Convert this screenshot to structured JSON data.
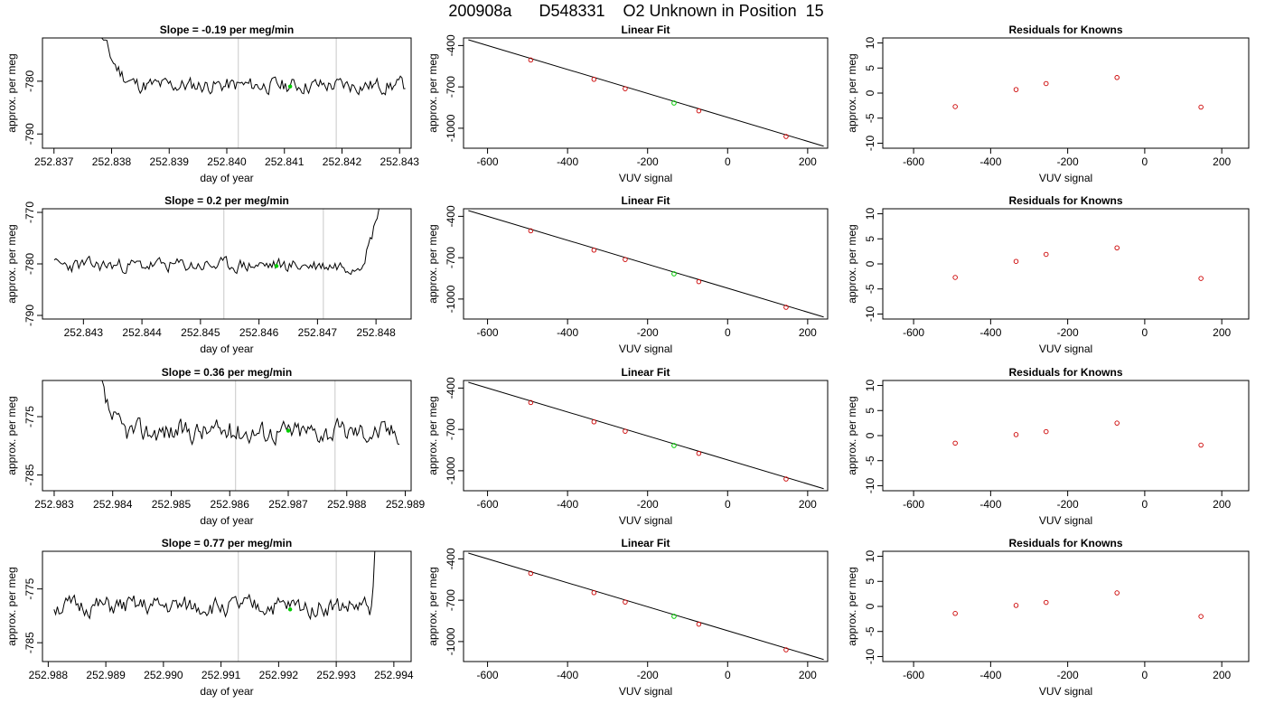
{
  "suptitle": "200908a      D548331    O2 Unknown in Position  15",
  "colors": {
    "trace": "#000000",
    "unknown": "#00cc00",
    "known": "#cc0000",
    "vline": "#c8c8c8",
    "fit": "#000000"
  },
  "chart_data": [
    {
      "type": "line",
      "title": "Slope =  -0.19  per meg/min",
      "xlabel": "day of year",
      "ylabel": "approx. per meg",
      "xlim": [
        252.8368,
        252.8432
      ],
      "ylim": [
        -792.7,
        -771.8
      ],
      "xticks": [
        "252.837",
        "252.838",
        "252.839",
        "252.840",
        "252.841",
        "252.842",
        "252.843"
      ],
      "xtick_values": [
        252.837,
        252.838,
        252.839,
        252.84,
        252.841,
        252.842,
        252.843
      ],
      "yticks": [
        "-790",
        "-780"
      ],
      "ytick_values": [
        -790,
        -780
      ],
      "vlines": [
        252.8402,
        252.8419
      ],
      "x_start": 252.8376,
      "x_end": 252.8431,
      "level": -780.8,
      "seed": 11,
      "amp": 1.1,
      "spike": "start",
      "spike_end": 252.8386,
      "spike_peak": -770,
      "unknown_point": [
        252.8411,
        -781.0
      ]
    },
    {
      "type": "line",
      "title": "Slope =  0.2  per meg/min",
      "xlabel": "day of year",
      "ylabel": "approx. per meg",
      "xlim": [
        252.8423,
        252.8486
      ],
      "ylim": [
        -790.7,
        -769.3
      ],
      "xticks": [
        "252.843",
        "252.844",
        "252.845",
        "252.846",
        "252.847",
        "252.848"
      ],
      "xtick_values": [
        252.843,
        252.844,
        252.845,
        252.846,
        252.847,
        252.848
      ],
      "yticks": [
        "-790",
        "-780",
        "-770"
      ],
      "ytick_values": [
        -790,
        -780,
        -770
      ],
      "vlines": [
        252.8454,
        252.8471
      ],
      "x_start": 252.8425,
      "x_end": 252.8482,
      "level": -780.3,
      "seed": 23,
      "amp": 1.0,
      "spike": "end",
      "spike_end": 252.848,
      "spike_peak": -768,
      "unknown_point": [
        252.8463,
        -780.4
      ]
    },
    {
      "type": "line",
      "title": "Slope =  0.36  per meg/min",
      "xlabel": "day of year",
      "ylabel": "approx. per meg",
      "xlim": [
        252.9828,
        252.9891
      ],
      "ylim": [
        -787.7,
        -768.8
      ],
      "xticks": [
        "252.983",
        "252.984",
        "252.985",
        "252.986",
        "252.987",
        "252.988",
        "252.989"
      ],
      "xtick_values": [
        252.983,
        252.984,
        252.985,
        252.986,
        252.987,
        252.988,
        252.989
      ],
      "yticks": [
        "-785",
        "-775"
      ],
      "ytick_values": [
        -785,
        -775
      ],
      "vlines": [
        252.9861,
        252.9878
      ],
      "x_start": 252.9836,
      "x_end": 252.9889,
      "level": -777.5,
      "seed": 37,
      "amp": 1.4,
      "spike": "start",
      "spike_end": 252.9843,
      "spike_peak": -767,
      "unknown_point": [
        252.987,
        -777.4
      ]
    },
    {
      "type": "line",
      "title": "Slope =  0.77  per meg/min",
      "xlabel": "day of year",
      "ylabel": "approx. per meg",
      "xlim": [
        252.9879,
        252.9943
      ],
      "ylim": [
        -788.5,
        -768.0
      ],
      "xticks": [
        "252.988",
        "252.989",
        "252.990",
        "252.991",
        "252.992",
        "252.993",
        "252.994"
      ],
      "xtick_values": [
        252.988,
        252.989,
        252.99,
        252.991,
        252.992,
        252.993,
        252.994
      ],
      "yticks": [
        "-785",
        "-775"
      ],
      "ytick_values": [
        -785,
        -775
      ],
      "vlines": [
        252.9913,
        252.993
      ],
      "x_start": 252.9881,
      "x_end": 252.9937,
      "level": -778.3,
      "seed": 51,
      "amp": 1.3,
      "spike": "end",
      "spike_end": 252.994,
      "spike_peak": -766,
      "unknown_point": [
        252.9922,
        -778.8
      ]
    },
    {
      "type": "scatter",
      "title": "Linear Fit",
      "xlabel": "VUV signal",
      "ylabel": "approx. per meg",
      "xlim": [
        -660,
        250
      ],
      "ylim": [
        -1145,
        -345
      ],
      "xticks": [
        "-600",
        "-400",
        "-200",
        "0",
        "200"
      ],
      "xtick_values": [
        -600,
        -400,
        -200,
        0,
        200
      ],
      "yticks": [
        "-1000",
        "-700",
        "-400"
      ],
      "ytick_values": [
        -1000,
        -700,
        -400
      ],
      "fit_line": [
        [
          -648,
          -358
        ],
        [
          240,
          -1130
        ]
      ],
      "knowns": [
        [
          -492,
          -505
        ],
        [
          -334,
          -645
        ],
        [
          -256,
          -713
        ],
        [
          -72,
          -874
        ],
        [
          146,
          -1060
        ]
      ],
      "unknown": [
        [
          -134,
          -817
        ]
      ]
    },
    {
      "type": "scatter",
      "title": "Linear Fit",
      "xlabel": "VUV signal",
      "ylabel": "approx. per meg",
      "xlim": [
        -660,
        250
      ],
      "ylim": [
        -1145,
        -345
      ],
      "xticks": [
        "-600",
        "-400",
        "-200",
        "0",
        "200"
      ],
      "xtick_values": [
        -600,
        -400,
        -200,
        0,
        200
      ],
      "yticks": [
        "-1000",
        "-700",
        "-400"
      ],
      "ytick_values": [
        -1000,
        -700,
        -400
      ],
      "fit_line": [
        [
          -648,
          -358
        ],
        [
          240,
          -1130
        ]
      ],
      "knowns": [
        [
          -492,
          -505
        ],
        [
          -334,
          -645
        ],
        [
          -256,
          -713
        ],
        [
          -72,
          -874
        ],
        [
          146,
          -1060
        ]
      ],
      "unknown": [
        [
          -134,
          -817
        ]
      ]
    },
    {
      "type": "scatter",
      "title": "Linear Fit",
      "xlabel": "VUV signal",
      "ylabel": "approx. per meg",
      "xlim": [
        -660,
        250
      ],
      "ylim": [
        -1145,
        -345
      ],
      "xticks": [
        "-600",
        "-400",
        "-200",
        "0",
        "200"
      ],
      "xtick_values": [
        -600,
        -400,
        -200,
        0,
        200
      ],
      "yticks": [
        "-1000",
        "-700",
        "-400"
      ],
      "ytick_values": [
        -1000,
        -700,
        -400
      ],
      "fit_line": [
        [
          -648,
          -358
        ],
        [
          240,
          -1130
        ]
      ],
      "knowns": [
        [
          -492,
          -505
        ],
        [
          -334,
          -645
        ],
        [
          -256,
          -713
        ],
        [
          -72,
          -874
        ],
        [
          146,
          -1060
        ]
      ],
      "unknown": [
        [
          -134,
          -817
        ]
      ]
    },
    {
      "type": "scatter",
      "title": "Linear Fit",
      "xlabel": "VUV signal",
      "ylabel": "approx. per meg",
      "xlim": [
        -660,
        250
      ],
      "ylim": [
        -1145,
        -345
      ],
      "xticks": [
        "-600",
        "-400",
        "-200",
        "0",
        "200"
      ],
      "xtick_values": [
        -600,
        -400,
        -200,
        0,
        200
      ],
      "yticks": [
        "-1000",
        "-700",
        "-400"
      ],
      "ytick_values": [
        -1000,
        -700,
        -400
      ],
      "fit_line": [
        [
          -648,
          -358
        ],
        [
          240,
          -1130
        ]
      ],
      "knowns": [
        [
          -492,
          -505
        ],
        [
          -334,
          -645
        ],
        [
          -256,
          -713
        ],
        [
          -72,
          -874
        ],
        [
          146,
          -1060
        ]
      ],
      "unknown": [
        [
          -134,
          -817
        ]
      ]
    },
    {
      "type": "scatter",
      "title": "Residuals for Knowns",
      "xlabel": "VUV signal",
      "ylabel": "approx. per meg",
      "xlim": [
        -680,
        270
      ],
      "ylim": [
        -11,
        11
      ],
      "xticks": [
        "-600",
        "-400",
        "-200",
        "0",
        "200"
      ],
      "xtick_values": [
        -600,
        -400,
        -200,
        0,
        200
      ],
      "yticks": [
        "-10",
        "-5",
        "0",
        "5",
        "10"
      ],
      "ytick_values": [
        -10,
        -5,
        0,
        5,
        10
      ],
      "knowns": [
        [
          -492,
          -2.7
        ],
        [
          -334,
          0.7
        ],
        [
          -256,
          1.9
        ],
        [
          -72,
          3.1
        ],
        [
          146,
          -2.8
        ]
      ]
    },
    {
      "type": "scatter",
      "title": "Residuals for Knowns",
      "xlabel": "VUV signal",
      "ylabel": "approx. per meg",
      "xlim": [
        -680,
        270
      ],
      "ylim": [
        -11,
        11
      ],
      "xticks": [
        "-600",
        "-400",
        "-200",
        "0",
        "200"
      ],
      "xtick_values": [
        -600,
        -400,
        -200,
        0,
        200
      ],
      "yticks": [
        "-10",
        "-5",
        "0",
        "5",
        "10"
      ],
      "ytick_values": [
        -10,
        -5,
        0,
        5,
        10
      ],
      "knowns": [
        [
          -492,
          -2.7
        ],
        [
          -334,
          0.5
        ],
        [
          -256,
          1.9
        ],
        [
          -72,
          3.2
        ],
        [
          146,
          -2.9
        ]
      ]
    },
    {
      "type": "scatter",
      "title": "Residuals for Knowns",
      "xlabel": "VUV signal",
      "ylabel": "approx. per meg",
      "xlim": [
        -680,
        270
      ],
      "ylim": [
        -11,
        11
      ],
      "xticks": [
        "-600",
        "-400",
        "-200",
        "0",
        "200"
      ],
      "xtick_values": [
        -600,
        -400,
        -200,
        0,
        200
      ],
      "yticks": [
        "-10",
        "-5",
        "0",
        "5",
        "10"
      ],
      "ytick_values": [
        -10,
        -5,
        0,
        5,
        10
      ],
      "knowns": [
        [
          -492,
          -1.5
        ],
        [
          -334,
          0.2
        ],
        [
          -256,
          0.8
        ],
        [
          -72,
          2.5
        ],
        [
          146,
          -1.9
        ]
      ]
    },
    {
      "type": "scatter",
      "title": "Residuals for Knowns",
      "xlabel": "VUV signal",
      "ylabel": "approx. per meg",
      "xlim": [
        -680,
        270
      ],
      "ylim": [
        -11,
        11
      ],
      "xticks": [
        "-600",
        "-400",
        "-200",
        "0",
        "200"
      ],
      "xtick_values": [
        -600,
        -400,
        -200,
        0,
        200
      ],
      "yticks": [
        "-10",
        "-5",
        "0",
        "5",
        "10"
      ],
      "ytick_values": [
        -10,
        -5,
        0,
        5,
        10
      ],
      "knowns": [
        [
          -492,
          -1.4
        ],
        [
          -334,
          0.2
        ],
        [
          -256,
          0.8
        ],
        [
          -72,
          2.7
        ],
        [
          146,
          -2.0
        ]
      ]
    }
  ]
}
